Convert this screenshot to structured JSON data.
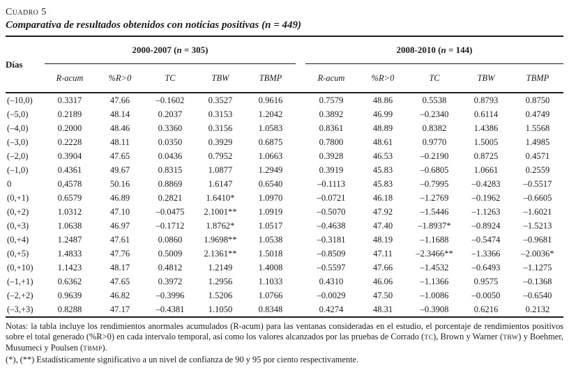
{
  "header": {
    "kicker": "Cuadro 5",
    "title": "Comparativa de resultados obtenidos con noticias positivas (n = 449)"
  },
  "table": {
    "dias_label": "Días",
    "groups": [
      {
        "pre": "2000-2007 (",
        "n": "n",
        "post": " = 305)"
      },
      {
        "pre": "2008-2010 (",
        "n": "n",
        "post": " = 144)"
      }
    ],
    "subcols": [
      "R-acum",
      "%R>0",
      "TC",
      "TBW",
      "TBMP"
    ],
    "rows": [
      {
        "dias": "(–10,0)",
        "g1": [
          "0.3317",
          "47.66",
          "–0.1602",
          "0.3527",
          "0.9616"
        ],
        "g2": [
          "0.7579",
          "48.86",
          "0.5538",
          "0.8793",
          "0.8750"
        ]
      },
      {
        "dias": "(–5,0)",
        "g1": [
          "0.2189",
          "48.14",
          "0.2037",
          "0.3153",
          "1.2042"
        ],
        "g2": [
          "0.3892",
          "46.99",
          "–0.2340",
          "0.6114",
          "0.4749"
        ]
      },
      {
        "dias": "(–4,0)",
        "g1": [
          "0.2000",
          "48.46",
          "0.3360",
          "0.3156",
          "1.0583"
        ],
        "g2": [
          "0.8361",
          "48.89",
          "0.8382",
          "1.4386",
          "1.5568"
        ]
      },
      {
        "dias": "(–3,0)",
        "g1": [
          "0.2228",
          "48.11",
          "0.0350",
          "0.3929",
          "0.6875"
        ],
        "g2": [
          "0.7800",
          "48.61",
          "0.9770",
          "1.5005",
          "1.4985"
        ]
      },
      {
        "dias": "(–2,0)",
        "g1": [
          "0.3904",
          "47.65",
          "0.0436",
          "0.7952",
          "1.0663"
        ],
        "g2": [
          "0.3928",
          "46.53",
          "–0.2190",
          "0.8725",
          "0.4571"
        ]
      },
      {
        "dias": "(–1,0)",
        "g1": [
          "0.4361",
          "49.67",
          "0.8315",
          "1.0877",
          "1.2949"
        ],
        "g2": [
          "0.3919",
          "45.83",
          "–0.6805",
          "1.0661",
          "0.2559"
        ]
      },
      {
        "dias": "0",
        "g1": [
          "0,4578",
          "50.16",
          "0.8869",
          "1.6147",
          "0.6540"
        ],
        "g2": [
          "–0.1113",
          "45.83",
          "–0.7995",
          "–0.4283",
          "–0.5517"
        ]
      },
      {
        "dias": "(0,+1)",
        "g1": [
          "0.6579",
          "46.89",
          "0.2821",
          "1.6410*",
          "1.0970"
        ],
        "g2": [
          "–0.0721",
          "46.18",
          "–1.2769",
          "–0.1962",
          "–0.6605"
        ]
      },
      {
        "dias": "(0,+2)",
        "g1": [
          "1.0312",
          "47.10",
          "–0.0475",
          "2.1001**",
          "1.0919"
        ],
        "g2": [
          "–0.5070",
          "47.92",
          "–1.5446",
          "–1.1263",
          "–1.6021"
        ]
      },
      {
        "dias": "(0,+3)",
        "g1": [
          "1.0638",
          "46.97",
          "–0.1712",
          "1.8762*",
          "1.0517"
        ],
        "g2": [
          "–0.4638",
          "47.40",
          "–1.8937*",
          "–0.8924",
          "–1.5213"
        ]
      },
      {
        "dias": "(0,+4)",
        "g1": [
          "1.2487",
          "47.61",
          "0.0860",
          "1.9698**",
          "1.0538"
        ],
        "g2": [
          "–0.3181",
          "48.19",
          "–1.1688",
          "–0.5474",
          "–0.9681"
        ]
      },
      {
        "dias": "(0,+5)",
        "g1": [
          "1.4833",
          "47.76",
          "0.5009",
          "2.1361**",
          "1.5018"
        ],
        "g2": [
          "–0.8509",
          "47.11",
          "–2.3466**",
          "–1.3366",
          "–2.0036*"
        ]
      },
      {
        "dias": "(0,+10)",
        "g1": [
          "1.1423",
          "48.17",
          "0.4812",
          "1.2149",
          "1.4008"
        ],
        "g2": [
          "–0.5597",
          "47.66",
          "–1.4532",
          "–0.6493",
          "–1.1275"
        ]
      },
      {
        "dias": "(–1,+1)",
        "g1": [
          "0.6362",
          "47.65",
          "0.3972",
          "1.2956",
          "1.1033"
        ],
        "g2": [
          "0.4310",
          "46.06",
          "–1.1366",
          "0.9575",
          "–0.1368"
        ]
      },
      {
        "dias": "(–2,+2)",
        "g1": [
          "0.9639",
          "46.82",
          "–0.3996",
          "1.5206",
          "1.0766"
        ],
        "g2": [
          "–0.0029",
          "47.50",
          "–1.0086",
          "–0.0050",
          "–0.6540"
        ]
      },
      {
        "dias": "(–3,+3)",
        "g1": [
          "0.8288",
          "47.17",
          "–0.4381",
          "1.1050",
          "0.8348"
        ],
        "g2": [
          "0.4274",
          "48.31",
          "–0.3908",
          "0.6216",
          "0.2132"
        ]
      }
    ]
  },
  "notes": {
    "p1": "Notas: la tabla incluye los rendimientos anormales acumulados (R-acum) para las ventanas consideradas en el estudio, el porcentaje de rendimientos positivos sobre el total generado (%R>0) en cada intervalo temporal, así como los valores alcanzados por las pruebas de Corrado (",
    "sc1": "tc",
    "p2": "), Brown y Warner (",
    "sc2": "tbw",
    "p3": ") y Boehmer, Musumeci y Poulsen (",
    "sc3": "tbmp",
    "p4": ").",
    "line2": "(*), (**) Estadísticamente significativo a un nivel de confianza de 90 y 95 por ciento respectivamente."
  }
}
